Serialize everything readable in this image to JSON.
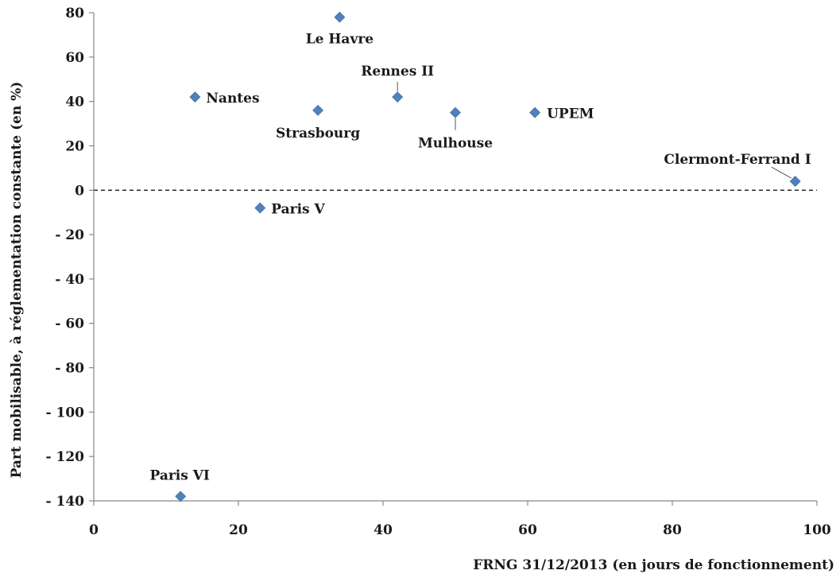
{
  "chart_data": {
    "type": "scatter",
    "xlabel": "FRNG 31/12/2013 (en jours de fonctionnement)",
    "ylabel": "Part mobilisable, à réglementation constante (en %)",
    "xlim": [
      0,
      100
    ],
    "ylim": [
      -140,
      80
    ],
    "x_ticks": [
      0,
      20,
      40,
      60,
      80,
      100
    ],
    "x_tick_labels": [
      "0",
      "20",
      "40",
      "60",
      "80",
      "100"
    ],
    "y_ticks": [
      80,
      60,
      40,
      20,
      0,
      -20,
      -40,
      -60,
      -80,
      -100,
      -120,
      -140
    ],
    "y_tick_labels": [
      "80",
      "60",
      "40",
      "20",
      "0",
      "- 20",
      "- 40",
      "- 60",
      "- 80",
      "- 100",
      "- 120",
      "- 140"
    ],
    "grid": false,
    "reference_line": {
      "y": 0,
      "style": "dashed"
    },
    "marker_color": "#4f81bd",
    "points": [
      {
        "label": "Le Havre",
        "x": 34,
        "y": 78
      },
      {
        "label": "Nantes",
        "x": 14,
        "y": 42
      },
      {
        "label": "Strasbourg",
        "x": 31,
        "y": 36
      },
      {
        "label": "Rennes II",
        "x": 42,
        "y": 42
      },
      {
        "label": "Mulhouse",
        "x": 50,
        "y": 35
      },
      {
        "label": "UPEM",
        "x": 61,
        "y": 35
      },
      {
        "label": "Clermont-Ferrand I",
        "x": 97,
        "y": 4
      },
      {
        "label": "Paris V",
        "x": 23,
        "y": -8
      },
      {
        "label": "Paris VI",
        "x": 12,
        "y": -138
      }
    ]
  }
}
